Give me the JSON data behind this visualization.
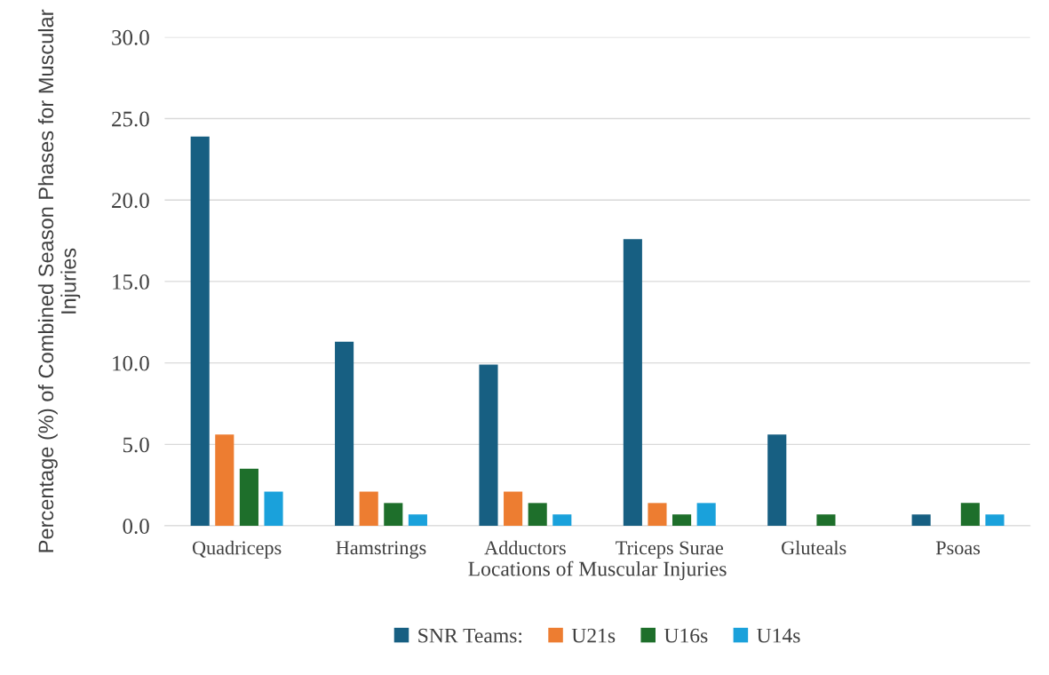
{
  "chart_data": {
    "type": "bar",
    "xlabel": "Locations of Muscular Injuries",
    "ylabel": "Percentage (%) of Combined Season Phases for Muscular Injuries",
    "categories": [
      "Quadriceps",
      "Hamstrings",
      "Adductors",
      "Triceps Surae",
      "Gluteals",
      "Psoas"
    ],
    "series": [
      {
        "name": "SNR Teams:",
        "color": "#175f82",
        "values": [
          23.9,
          11.3,
          9.9,
          17.6,
          5.6,
          0.7
        ]
      },
      {
        "name": "U21s",
        "color": "#ed7d31",
        "values": [
          5.6,
          2.1,
          2.1,
          1.4,
          0,
          0
        ]
      },
      {
        "name": "U16s",
        "color": "#1e6f2b",
        "values": [
          3.5,
          1.4,
          1.4,
          0.7,
          0.7,
          1.4
        ]
      },
      {
        "name": "U14s",
        "color": "#1aa1db",
        "values": [
          2.1,
          0.7,
          0.7,
          1.4,
          0,
          0.7
        ]
      }
    ],
    "ylim": [
      0,
      30
    ],
    "yticks": [
      {
        "value": 0,
        "label": "0.0"
      },
      {
        "value": 5,
        "label": "5.0"
      },
      {
        "value": 10,
        "label": "10.0"
      },
      {
        "value": 15,
        "label": "15.0"
      },
      {
        "value": 20,
        "label": "20.0"
      },
      {
        "value": 25,
        "label": "25.0"
      },
      {
        "value": 30,
        "label": "30.0"
      }
    ],
    "grid": "y",
    "legend": "bottom"
  }
}
